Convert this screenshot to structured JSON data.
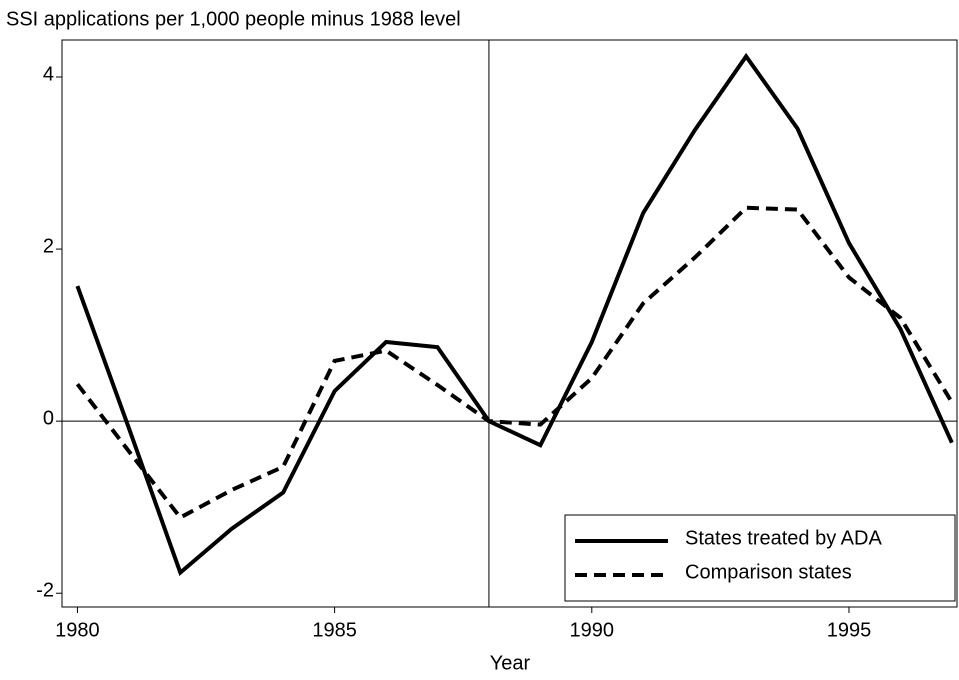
{
  "chart_data": {
    "type": "line",
    "title": "SSI applications per 1,000 people minus 1988 level",
    "x_label": "Year",
    "x": [
      1980,
      1981,
      1982,
      1983,
      1984,
      1985,
      1986,
      1987,
      1988,
      1989,
      1990,
      1991,
      1992,
      1993,
      1994,
      1995,
      1996,
      1997
    ],
    "series": [
      {
        "name": "States treated by ADA",
        "color": "#000000",
        "dash": "solid",
        "values": [
          1.57,
          -0.08,
          -1.76,
          -1.25,
          -0.83,
          0.35,
          0.92,
          0.86,
          0,
          -0.28,
          0.92,
          2.42,
          3.38,
          4.24,
          3.4,
          2.07,
          1.07,
          -0.25
        ]
      },
      {
        "name": "Comparison states",
        "color": "#000000",
        "dash": "dashed",
        "values": [
          0.43,
          -0.35,
          -1.12,
          -0.8,
          -0.53,
          0.7,
          0.82,
          0.42,
          0,
          -0.04,
          0.5,
          1.37,
          1.9,
          2.48,
          2.46,
          1.67,
          1.2,
          0.22
        ]
      }
    ],
    "xlim": [
      1979.7,
      1997.1
    ],
    "ylim": [
      -2.16,
      4.43
    ],
    "xticks": [
      1980,
      1985,
      1990,
      1995
    ],
    "yticks": [
      -2,
      0,
      2,
      4
    ],
    "hline": 0,
    "vline": 1988,
    "legend": "lower right"
  }
}
